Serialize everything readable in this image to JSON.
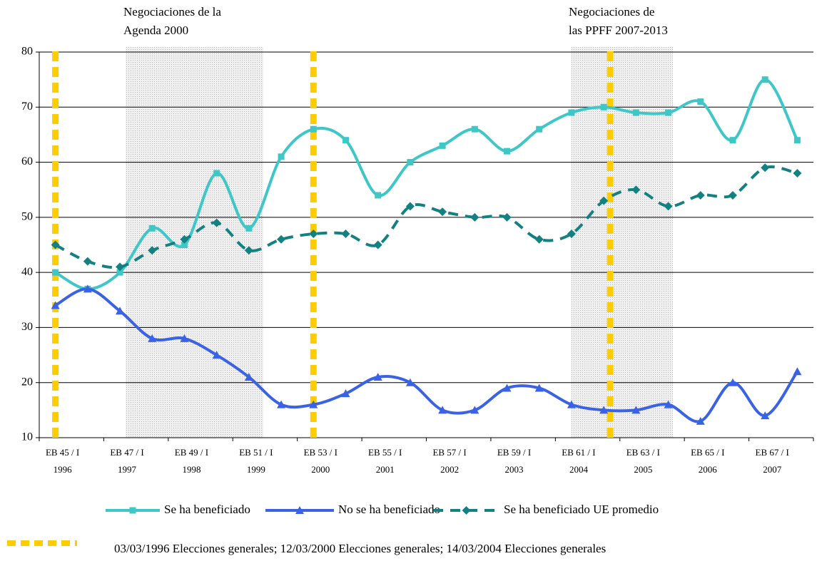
{
  "chart_data": {
    "type": "line",
    "categories": [
      "EB 45 / I",
      null,
      "EB 47 / I",
      null,
      "EB 49 / I",
      null,
      "EB 51 / I",
      null,
      "EB 53 / I",
      null,
      "EB 55 / I",
      null,
      "EB 57 / I",
      null,
      "EB 59 / I",
      null,
      "EB 61 / I",
      null,
      "EB 63 / I",
      null,
      "EB 65 / I",
      null,
      "EB 67 / I",
      null
    ],
    "category_years": [
      "1996",
      null,
      "1997",
      null,
      "1998",
      null,
      "1999",
      null,
      "2000",
      null,
      "2001",
      null,
      "2002",
      null,
      "2003",
      null,
      "2004",
      null,
      "2005",
      null,
      "2006",
      null,
      "2007",
      null
    ],
    "series": [
      {
        "name": "Se ha beneficiado",
        "color": "#3fc6c6",
        "marker": "square",
        "dashed": false,
        "values": [
          40,
          37,
          40,
          48,
          45,
          58,
          48,
          61,
          66,
          64,
          54,
          60,
          63,
          66,
          62,
          66,
          69,
          70,
          69,
          69,
          71,
          64,
          75,
          64
        ]
      },
      {
        "name": "No se ha beneficiado",
        "color": "#3a62e6",
        "marker": "triangle",
        "dashed": false,
        "values": [
          34,
          37,
          33,
          28,
          28,
          25,
          21,
          16,
          16,
          18,
          21,
          20,
          15,
          15,
          19,
          19,
          16,
          15,
          15,
          16,
          13,
          20,
          14,
          22
        ]
      },
      {
        "name": "Se ha beneficiado UE promedio",
        "color": "#138181",
        "marker": "diamond",
        "dashed": true,
        "values": [
          45,
          42,
          41,
          44,
          46,
          49,
          44,
          46,
          47,
          47,
          45,
          52,
          51,
          50,
          50,
          46,
          47,
          53,
          55,
          52,
          54,
          54,
          59,
          58
        ]
      }
    ],
    "ylim": [
      10,
      80
    ],
    "yticks": [
      10,
      20,
      30,
      40,
      50,
      60,
      70,
      80
    ],
    "grid": true,
    "legend": "bottom",
    "annotations": [
      {
        "lines": [
          "Negociaciones de la",
          "Agenda 2000"
        ]
      },
      {
        "lines": [
          "Negociaciones de",
          "las PPFF 2007-2013"
        ]
      }
    ],
    "footnote": "03/03/1996 Elecciones generales; 12/03/2000 Elecciones generales; 14/03/2004 Elecciones generales"
  }
}
